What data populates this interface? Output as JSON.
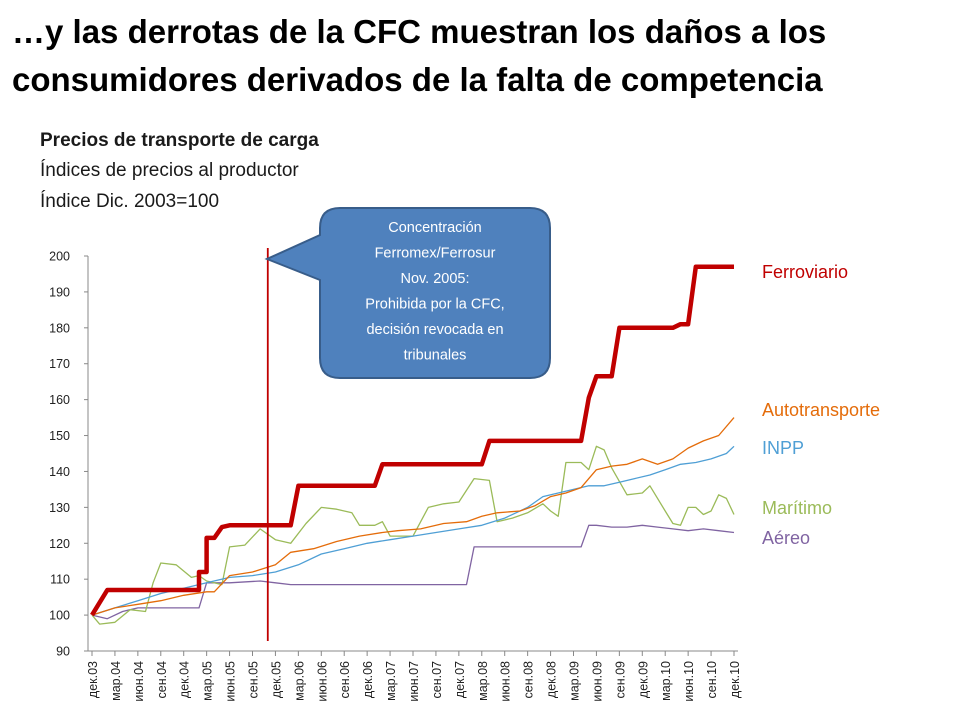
{
  "title": "…y las derrotas de la CFC muestran los daños a los consumidores derivados de la falta de competencia",
  "subtitle_lines": [
    "Precios de transporte de carga",
    "Índices de precios al productor",
    "Índice Dic. 2003=100"
  ],
  "colors": {
    "ferroviario": "#c00000",
    "autotransporte": "#e46c0a",
    "inpp": "#4f9fd5",
    "maritimo": "#9bbb59",
    "aereo": "#8064a2",
    "marker": "#c00000",
    "callout_fill": "#4f81bd",
    "callout_stroke": "#385d8a",
    "axis": "#888888",
    "tick_text": "#222222"
  },
  "callout": {
    "lines": [
      "Concentración",
      "Ferromex/Ferrosur",
      "Nov. 2005:",
      "Prohibida por la CFC,",
      "decisión  revocada en",
      "tribunales"
    ]
  },
  "chart_data": {
    "type": "line",
    "x_tick_labels": [
      "дек.03",
      "мар.04",
      "июн.04",
      "сен.04",
      "дек.04",
      "мар.05",
      "июн.05",
      "сен.05",
      "дек.05",
      "мар.06",
      "июн.06",
      "сен.06",
      "дек.06",
      "мар.07",
      "июн.07",
      "сен.07",
      "дек.07",
      "мар.08",
      "июн.08",
      "сен.08",
      "дек.08",
      "мар.09",
      "июн.09",
      "сен.09",
      "дек.09",
      "мар.10",
      "июн.10",
      "сен.10",
      "дек.10"
    ],
    "x_tick_every_months": 3,
    "num_points": 85,
    "ylim": [
      90,
      200
    ],
    "y_ticks": [
      90,
      100,
      110,
      120,
      130,
      140,
      150,
      160,
      170,
      180,
      190,
      200
    ],
    "marker_month_index": 23,
    "grid": false,
    "series": [
      {
        "name": "Ferroviario",
        "key": "ferroviario",
        "width": 4.5,
        "points": [
          [
            0,
            100
          ],
          [
            2,
            107
          ],
          [
            14,
            107
          ],
          [
            14,
            112
          ],
          [
            15,
            112
          ],
          [
            15,
            121.5
          ],
          [
            16,
            121.5
          ],
          [
            17,
            124.5
          ],
          [
            18,
            125
          ],
          [
            26,
            125
          ],
          [
            27,
            136
          ],
          [
            37,
            136
          ],
          [
            38,
            142
          ],
          [
            51,
            142
          ],
          [
            52,
            148.5
          ],
          [
            64,
            148.5
          ],
          [
            65,
            160.5
          ],
          [
            66,
            166.5
          ],
          [
            68,
            166.5
          ],
          [
            69,
            180
          ],
          [
            76,
            180
          ],
          [
            77,
            181
          ],
          [
            78,
            181
          ],
          [
            79,
            197
          ],
          [
            84,
            197
          ]
        ]
      },
      {
        "name": "Autotransporte",
        "key": "autotransporte",
        "width": 1.3,
        "points": [
          [
            0,
            100
          ],
          [
            3,
            102
          ],
          [
            6,
            103
          ],
          [
            9,
            104
          ],
          [
            12,
            105.5
          ],
          [
            15,
            106.5
          ],
          [
            16,
            106.5
          ],
          [
            18,
            111
          ],
          [
            21,
            112
          ],
          [
            24,
            114
          ],
          [
            26,
            117.5
          ],
          [
            29,
            118.5
          ],
          [
            32,
            120.5
          ],
          [
            35,
            122
          ],
          [
            38,
            123
          ],
          [
            40,
            123.5
          ],
          [
            43,
            124
          ],
          [
            46,
            125.5
          ],
          [
            49,
            126
          ],
          [
            51,
            127.5
          ],
          [
            53,
            128.5
          ],
          [
            56,
            129
          ],
          [
            58,
            130.5
          ],
          [
            60,
            133
          ],
          [
            62,
            134
          ],
          [
            64,
            135.5
          ],
          [
            66,
            140.5
          ],
          [
            68,
            141.5
          ],
          [
            70,
            142
          ],
          [
            72,
            143.5
          ],
          [
            74,
            142
          ],
          [
            76,
            143.5
          ],
          [
            78,
            146.5
          ],
          [
            80,
            148.5
          ],
          [
            82,
            150
          ],
          [
            84,
            155
          ]
        ]
      },
      {
        "name": "INPP",
        "key": "inpp",
        "width": 1.3,
        "points": [
          [
            0,
            100
          ],
          [
            3,
            102
          ],
          [
            6,
            104
          ],
          [
            9,
            106
          ],
          [
            12,
            107.5
          ],
          [
            15,
            109
          ],
          [
            18,
            110.5
          ],
          [
            21,
            111
          ],
          [
            24,
            112
          ],
          [
            27,
            114
          ],
          [
            30,
            117
          ],
          [
            33,
            118.5
          ],
          [
            36,
            120
          ],
          [
            39,
            121
          ],
          [
            42,
            122
          ],
          [
            45,
            123
          ],
          [
            48,
            124
          ],
          [
            51,
            125
          ],
          [
            54,
            127
          ],
          [
            57,
            130
          ],
          [
            59,
            133
          ],
          [
            61,
            134
          ],
          [
            63,
            135
          ],
          [
            65,
            136
          ],
          [
            67,
            136
          ],
          [
            69,
            137
          ],
          [
            71,
            138
          ],
          [
            73,
            139
          ],
          [
            75,
            140.5
          ],
          [
            77,
            142
          ],
          [
            79,
            142.5
          ],
          [
            81,
            143.5
          ],
          [
            83,
            145
          ],
          [
            84,
            147
          ]
        ]
      },
      {
        "name": "Marítimo",
        "key": "maritimo",
        "width": 1.3,
        "points": [
          [
            0,
            100
          ],
          [
            1,
            97.5
          ],
          [
            3,
            98
          ],
          [
            5,
            101.5
          ],
          [
            7,
            101
          ],
          [
            8,
            109
          ],
          [
            9,
            114.5
          ],
          [
            11,
            114
          ],
          [
            13,
            110.5
          ],
          [
            14,
            111
          ],
          [
            15,
            109.5
          ],
          [
            17,
            108.5
          ],
          [
            18,
            119
          ],
          [
            20,
            119.5
          ],
          [
            22,
            124
          ],
          [
            24,
            121
          ],
          [
            26,
            120
          ],
          [
            28,
            125.5
          ],
          [
            30,
            130
          ],
          [
            32,
            129.5
          ],
          [
            34,
            128.5
          ],
          [
            35,
            125
          ],
          [
            37,
            125
          ],
          [
            38,
            126
          ],
          [
            39,
            122
          ],
          [
            42,
            122
          ],
          [
            44,
            130
          ],
          [
            46,
            131
          ],
          [
            48,
            131.5
          ],
          [
            50,
            138
          ],
          [
            52,
            137.5
          ],
          [
            53,
            126
          ],
          [
            55,
            127
          ],
          [
            57,
            128.5
          ],
          [
            59,
            131
          ],
          [
            60,
            129
          ],
          [
            61,
            127.5
          ],
          [
            62,
            142.5
          ],
          [
            64,
            142.5
          ],
          [
            65,
            140.5
          ],
          [
            66,
            147
          ],
          [
            67,
            146
          ],
          [
            68,
            141
          ],
          [
            70,
            133.5
          ],
          [
            72,
            134
          ],
          [
            73,
            136
          ],
          [
            75,
            129
          ],
          [
            76,
            125.5
          ],
          [
            77,
            125
          ],
          [
            78,
            130
          ],
          [
            79,
            130
          ],
          [
            80,
            128
          ],
          [
            81,
            129
          ],
          [
            82,
            133.5
          ],
          [
            83,
            132.5
          ],
          [
            84,
            128
          ]
        ]
      },
      {
        "name": "Aéreo",
        "key": "aereo",
        "width": 1.3,
        "points": [
          [
            0,
            100
          ],
          [
            2,
            99
          ],
          [
            4,
            101
          ],
          [
            6,
            102
          ],
          [
            8,
            102
          ],
          [
            11,
            102
          ],
          [
            14,
            102
          ],
          [
            15,
            109
          ],
          [
            18,
            109
          ],
          [
            22,
            109.5
          ],
          [
            24,
            109
          ],
          [
            26,
            108.5
          ],
          [
            30,
            108.5
          ],
          [
            40,
            108.5
          ],
          [
            48,
            108.5
          ],
          [
            49,
            108.5
          ],
          [
            50,
            119
          ],
          [
            56,
            119
          ],
          [
            64,
            119
          ],
          [
            65,
            125
          ],
          [
            66,
            125
          ],
          [
            68,
            124.5
          ],
          [
            70,
            124.5
          ],
          [
            72,
            125
          ],
          [
            74,
            124.5
          ],
          [
            76,
            124
          ],
          [
            78,
            123.5
          ],
          [
            80,
            124
          ],
          [
            82,
            123.5
          ],
          [
            84,
            123
          ]
        ]
      }
    ],
    "legend": [
      {
        "label": "Ferroviario",
        "key": "ferroviario"
      },
      {
        "label": "Autotransporte",
        "key": "autotransporte"
      },
      {
        "label": "INPP",
        "key": "inpp"
      },
      {
        "label": "Marítimo",
        "key": "maritimo"
      },
      {
        "label": "Aéreo",
        "key": "aereo"
      }
    ]
  }
}
